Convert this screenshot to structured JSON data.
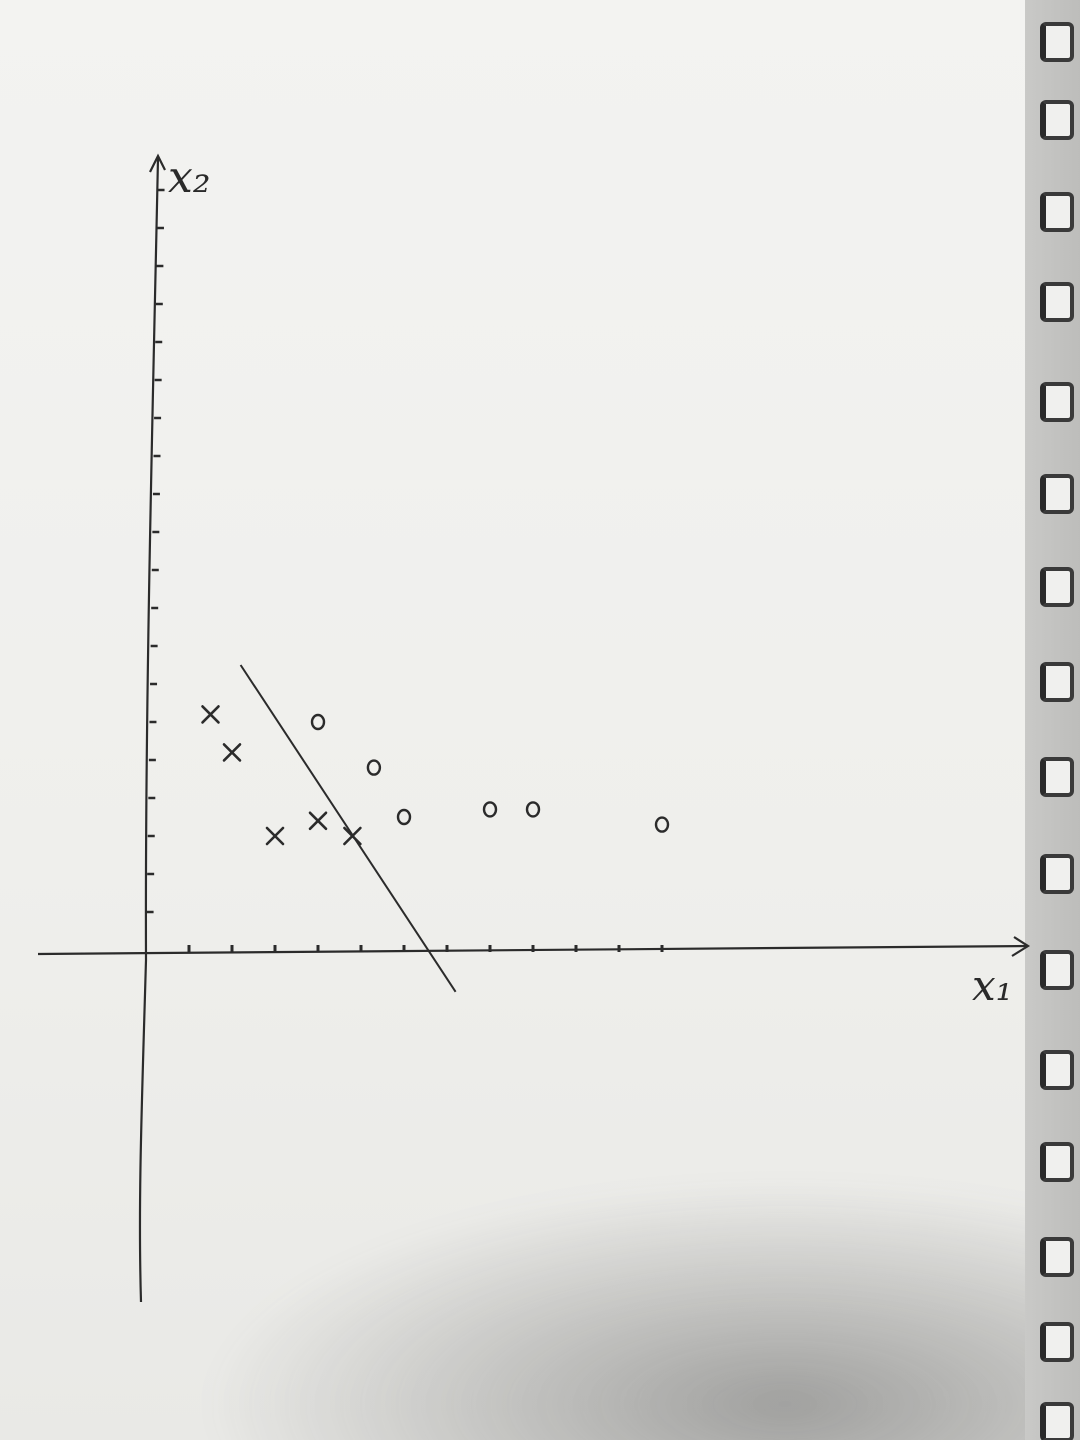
{
  "diagram": {
    "x_axis_label": "x₁",
    "y_axis_label": "x₂",
    "ink_color": "#2b2b2b",
    "paper_color": "#f1f1ef",
    "x_markers": [
      {
        "x": 1.5,
        "y": 6.2
      },
      {
        "x": 2.0,
        "y": 5.2
      },
      {
        "x": 4.0,
        "y": 3.4
      },
      {
        "x": 3.0,
        "y": 3.0
      },
      {
        "x": 4.8,
        "y": 3.0
      }
    ],
    "o_markers": [
      {
        "x": 4.0,
        "y": 6.0
      },
      {
        "x": 5.3,
        "y": 4.8
      },
      {
        "x": 6.0,
        "y": 3.5
      },
      {
        "x": 8.0,
        "y": 3.7
      },
      {
        "x": 9.0,
        "y": 3.7
      },
      {
        "x": 12.0,
        "y": 3.3
      }
    ],
    "separating_line": {
      "from": [
        2.2,
        7.5
      ],
      "to": [
        7.2,
        -1.1
      ]
    }
  }
}
